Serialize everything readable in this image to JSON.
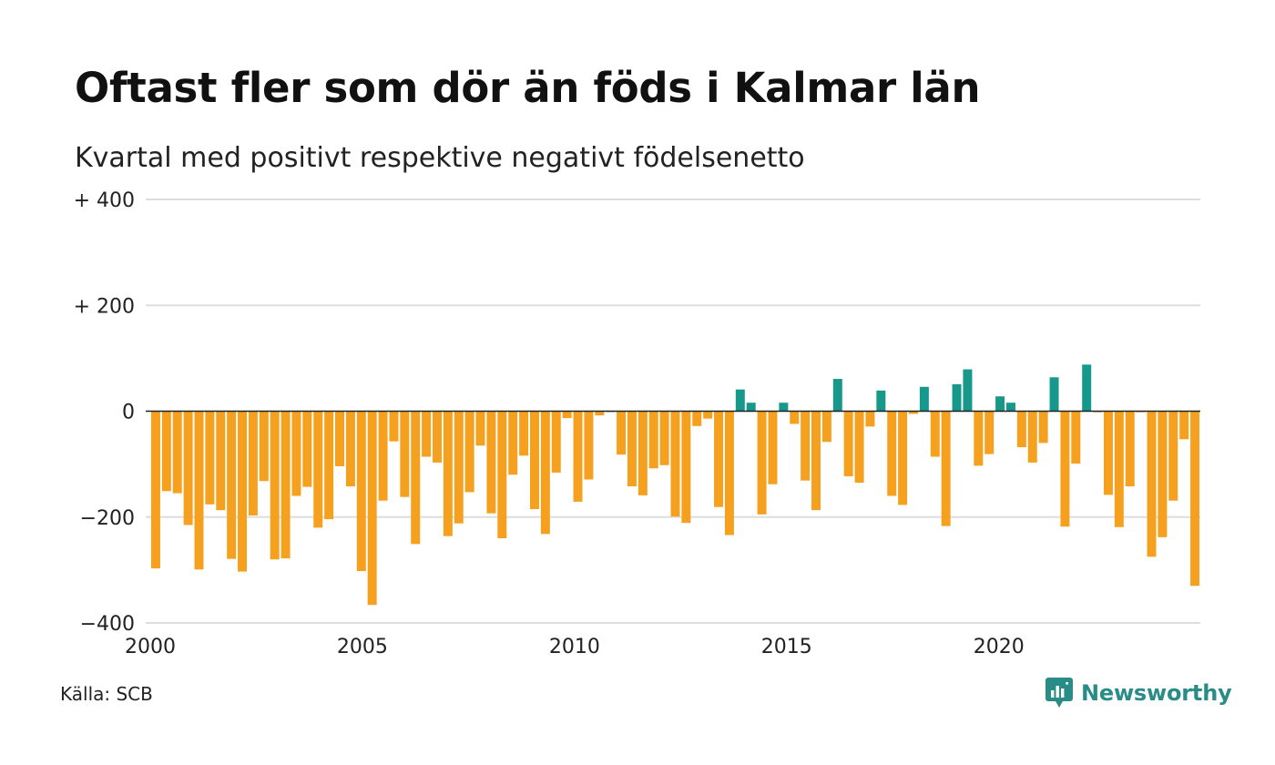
{
  "title": "Oftast fler som dör än föds i Kalmar län",
  "subtitle": "Kvartal med positivt respektive negativt födelsenetto",
  "source": "Källa: SCB",
  "brand": {
    "name": "Newsworthy",
    "icon": "newsworthy-logo-icon"
  },
  "colors": {
    "positive": "#16988a",
    "negative": "#f5a01e",
    "grid": "#dddddd",
    "zero": "#222222"
  },
  "chart_data": {
    "type": "bar",
    "title": "Oftast fler som dör än föds i Kalmar län",
    "subtitle": "Kvartal med positivt respektive negativt födelsenetto",
    "xlabel": "",
    "ylabel": "",
    "ylim": [
      -400,
      400
    ],
    "xlim": [
      2000,
      2024.75
    ],
    "grid": true,
    "y_ticks": [
      {
        "value": 400,
        "label": "+ 400"
      },
      {
        "value": 200,
        "label": "+ 200"
      },
      {
        "value": 0,
        "label": "0"
      },
      {
        "value": -200,
        "label": "−200"
      },
      {
        "value": -400,
        "label": "−400"
      }
    ],
    "x_ticks": [
      {
        "value": 2000,
        "label": "2000"
      },
      {
        "value": 2005,
        "label": "2005"
      },
      {
        "value": 2010,
        "label": "2010"
      },
      {
        "value": 2015,
        "label": "2015"
      },
      {
        "value": 2020,
        "label": "2020"
      }
    ],
    "start_year": 2000,
    "values": [
      -297,
      -151,
      -155,
      -215,
      -299,
      -176,
      -187,
      -279,
      -303,
      -197,
      -132,
      -280,
      -278,
      -160,
      -143,
      -220,
      -204,
      -104,
      -142,
      -302,
      -366,
      -169,
      -57,
      -162,
      -251,
      -86,
      -97,
      -236,
      -212,
      -153,
      -65,
      -193,
      -240,
      -120,
      -84,
      -185,
      -232,
      -116,
      -13,
      -171,
      -129,
      -8,
      0,
      -82,
      -142,
      -159,
      -108,
      -102,
      -199,
      -211,
      -28,
      -14,
      -181,
      -234,
      41,
      16,
      -195,
      -138,
      16,
      -24,
      -131,
      -187,
      -58,
      61,
      -123,
      -135,
      -29,
      39,
      -160,
      -177,
      -5,
      46,
      -86,
      -217,
      51,
      79,
      -103,
      -81,
      28,
      16,
      -68,
      -97,
      -60,
      64,
      -218,
      -99,
      88,
      -2,
      -158,
      -219,
      -142,
      -2,
      -275,
      -238,
      -169,
      -53,
      -330
    ]
  }
}
